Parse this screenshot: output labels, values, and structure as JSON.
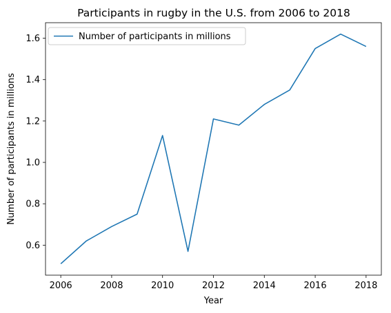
{
  "chart_data": {
    "type": "line",
    "title": "Participants in rugby in the U.S. from 2006 to 2018",
    "xlabel": "Year",
    "ylabel": "Number of participants in millions",
    "x": [
      2006,
      2007,
      2008,
      2009,
      2010,
      2011,
      2012,
      2013,
      2014,
      2015,
      2016,
      2017,
      2018
    ],
    "series": [
      {
        "name": "Number of participants in millions",
        "values": [
          0.51,
          0.62,
          0.69,
          0.75,
          1.13,
          0.57,
          1.21,
          1.18,
          1.28,
          1.35,
          1.55,
          1.62,
          1.56
        ],
        "color": "#1f77b4"
      }
    ],
    "xlim": [
      2005.4,
      2018.6
    ],
    "ylim": [
      0.455,
      1.675
    ],
    "xticks": [
      "2006",
      "2008",
      "2010",
      "2012",
      "2014",
      "2016",
      "2018"
    ],
    "yticks": [
      "0.6",
      "0.8",
      "1.0",
      "1.2",
      "1.4",
      "1.6"
    ],
    "grid": false,
    "legend_position": "top-left"
  }
}
